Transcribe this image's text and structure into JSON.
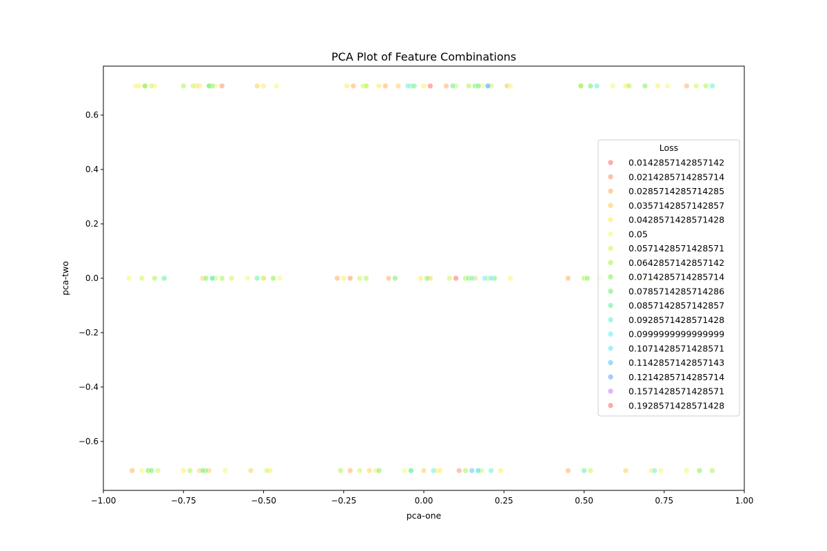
{
  "chart_data": {
    "type": "scatter",
    "title": "PCA Plot of Feature Combinations",
    "xlabel": "pca-one",
    "ylabel": "pca-two",
    "xlim": [
      -1.0,
      1.0
    ],
    "ylim": [
      -0.78,
      0.78
    ],
    "xticks": [
      -1.0,
      -0.75,
      -0.5,
      -0.25,
      0.0,
      0.25,
      0.5,
      0.75,
      1.0
    ],
    "xtick_labels": [
      "−1.00",
      "−0.75",
      "−0.50",
      "−0.25",
      "0.00",
      "0.25",
      "0.50",
      "0.75",
      "1.00"
    ],
    "yticks": [
      -0.6,
      -0.4,
      -0.2,
      0.0,
      0.2,
      0.4,
      0.6
    ],
    "ytick_labels": [
      "−0.6",
      "−0.4",
      "−0.2",
      "0.0",
      "0.2",
      "0.4",
      "0.6"
    ],
    "grid": false,
    "legend": {
      "title": "Loss",
      "placement": "center-right",
      "entries": [
        {
          "label": "0.0142857142857142",
          "color": "#ff8080"
        },
        {
          "label": "0.0214285714285714",
          "color": "#ffa07a"
        },
        {
          "label": "0.0285714285714285",
          "color": "#ffb870"
        },
        {
          "label": "0.0357142857142857",
          "color": "#ffd36b"
        },
        {
          "label": "0.0428571428571428",
          "color": "#ffee66"
        },
        {
          "label": "0.05",
          "color": "#f4fa80"
        },
        {
          "label": "0.0571428571428571",
          "color": "#d4f766"
        },
        {
          "label": "0.0642857142857142",
          "color": "#b2f55e"
        },
        {
          "label": "0.0714285714285714",
          "color": "#8cf261"
        },
        {
          "label": "0.0785714285714286",
          "color": "#78ee80"
        },
        {
          "label": "0.0857142857142857",
          "color": "#70f2a8"
        },
        {
          "label": "0.0928571428571428",
          "color": "#70f5cc"
        },
        {
          "label": "0.0999999999999999",
          "color": "#70f5ec"
        },
        {
          "label": "0.1071428571428571",
          "color": "#78e6ff"
        },
        {
          "label": "0.1142857142857143",
          "color": "#6ccaf5"
        },
        {
          "label": "0.1214285714285714",
          "color": "#7aaef2"
        },
        {
          "label": "0.1571428571428571",
          "color": "#d88af5"
        },
        {
          "label": "0.1928571428571428",
          "color": "#ff7a7a"
        }
      ]
    },
    "series": [
      {
        "name": "0.0142857142857142",
        "x": [],
        "y": []
      },
      {
        "name": "0.0214285714285714",
        "x": [
          -0.63,
          0.11,
          -0.23
        ],
        "y": [
          0.7071,
          -0.7071,
          0.0
        ]
      },
      {
        "name": "0.0285714285714285",
        "x": [
          -0.22,
          -0.12,
          0.07,
          -0.27,
          -0.11,
          0.45,
          0.26,
          -0.91,
          -0.23,
          0.45,
          0.82
        ],
        "y": [
          0.7071,
          0.7071,
          0.7071,
          0.0,
          0.0,
          0.0,
          0.7071,
          -0.7071,
          -0.7071,
          -0.7071,
          0.7071
        ]
      },
      {
        "name": "0.0357142857142857",
        "x": [
          -0.87,
          -0.71,
          -0.69,
          -0.52,
          -0.5,
          -0.08,
          0.02,
          0.16,
          -0.7,
          -0.67,
          -0.54,
          -0.17,
          0.0,
          0.63
        ],
        "y": [
          0.7071,
          0.7071,
          0.0,
          0.7071,
          0.0,
          0.7071,
          0.0,
          0.0,
          -0.7071,
          -0.7071,
          -0.7071,
          -0.7071,
          -0.7071,
          -0.7071
        ]
      },
      {
        "name": "0.0428571428571428",
        "x": [
          -0.89,
          -0.7,
          -0.5,
          -0.24,
          -0.14,
          0.0,
          -0.25,
          -0.01,
          -0.15,
          0.04,
          0.49,
          0.63,
          0.73,
          0.68,
          -0.75,
          -0.48,
          0.05,
          0.24,
          0.71,
          0.88
        ],
        "y": [
          0.7071,
          0.7071,
          0.7071,
          0.7071,
          0.7071,
          0.7071,
          0.0,
          0.0,
          -0.7071,
          -0.7071,
          0.7071,
          0.7071,
          0.7071,
          0.0,
          -0.7071,
          -0.7071,
          -0.7071,
          -0.7071,
          -0.7071,
          0.0
        ]
      },
      {
        "name": "0.05",
        "x": [
          -0.9,
          -0.84,
          -0.65,
          -0.46,
          -0.18,
          0.18,
          0.27,
          -0.92,
          -0.55,
          -0.45,
          0.27,
          0.72,
          -0.88,
          -0.62,
          -0.06,
          0.59,
          0.76,
          0.74,
          -0.86,
          0.82
        ],
        "y": [
          0.7071,
          0.7071,
          0.7071,
          0.7071,
          0.7071,
          0.7071,
          0.0,
          0.0,
          0.0,
          0.0,
          0.7071,
          0.0,
          -0.7071,
          -0.7071,
          -0.7071,
          0.7071,
          0.7071,
          -0.7071,
          -0.7071,
          -0.7071
        ]
      },
      {
        "name": "0.0571428571428571",
        "x": [
          -0.85,
          -0.72,
          -0.6,
          -0.19,
          0.1,
          0.21,
          -0.88,
          -0.65,
          -0.5,
          -0.2,
          0.08,
          0.2,
          0.55,
          -0.83,
          -0.49,
          -0.2,
          0.18,
          0.52,
          0.85
        ],
        "y": [
          0.7071,
          0.7071,
          0.0,
          0.7071,
          0.7071,
          0.7071,
          0.0,
          0.0,
          0.0,
          0.0,
          0.0,
          0.0,
          0.0,
          -0.7071,
          -0.7071,
          -0.7071,
          -0.7071,
          -0.7071,
          0.7071
        ]
      },
      {
        "name": "0.0642857142857142",
        "x": [
          -0.75,
          -0.67,
          -0.18,
          0.14,
          -0.84,
          -0.63,
          -0.18,
          0.13,
          0.5,
          -0.73,
          -0.26,
          0.13,
          0.64,
          0.88,
          0.9
        ],
        "y": [
          0.7071,
          0.7071,
          0.7071,
          0.7071,
          0.0,
          0.0,
          0.0,
          0.0,
          0.0,
          -0.7071,
          -0.7071,
          -0.7071,
          0.7071,
          0.7071,
          -0.7071
        ]
      },
      {
        "name": "0.0714285714285714",
        "x": [
          -0.87,
          -0.66,
          -0.04,
          0.16,
          -0.68,
          -0.47,
          0.01,
          0.14,
          0.51,
          -0.86,
          -0.68,
          -0.14,
          -0.04,
          0.49,
          0.69,
          0.86
        ],
        "y": [
          0.7071,
          0.7071,
          0.7071,
          0.7071,
          0.0,
          0.0,
          0.0,
          0.0,
          0.0,
          -0.7071,
          -0.7071,
          -0.7071,
          -0.7071,
          0.7071,
          0.7071,
          -0.7071
        ]
      },
      {
        "name": "0.0785714285714286",
        "x": [
          -0.67,
          0.17,
          -0.66,
          -0.09,
          0.22,
          -0.85,
          -0.69,
          0.17,
          0.52
        ],
        "y": [
          0.7071,
          0.7071,
          0.0,
          0.0,
          0.0,
          -0.7071,
          -0.7071,
          -0.7071,
          0.7071
        ]
      },
      {
        "name": "0.0857142857142857",
        "x": [
          -0.03,
          0.09,
          -0.81,
          -0.52,
          0.5
        ],
        "y": [
          0.7071,
          0.7071,
          0.0,
          0.0,
          -0.7071
        ]
      },
      {
        "name": "0.0928571428571428",
        "x": [
          0.2,
          -0.66,
          0.15,
          -0.04,
          0.21,
          0.54,
          0.72,
          0.9
        ],
        "y": [
          0.7071,
          0.0,
          0.0,
          -0.7071,
          -0.7071,
          0.7071,
          -0.7071,
          0.7071
        ]
      },
      {
        "name": "0.0999999999999999",
        "x": [
          -0.05,
          0.19,
          0.03
        ],
        "y": [
          0.7071,
          0.0,
          -0.7071
        ]
      },
      {
        "name": "0.1071428571428571",
        "x": [
          0.21,
          0.17
        ],
        "y": [
          0.0,
          -0.7071
        ]
      },
      {
        "name": "0.1142857142857143",
        "x": [
          0.15
        ],
        "y": [
          -0.7071
        ]
      },
      {
        "name": "0.1214285714285714",
        "x": [
          0.2
        ],
        "y": [
          0.7071
        ]
      },
      {
        "name": "0.1571428571428571",
        "x": [],
        "y": []
      },
      {
        "name": "0.1928571428571428",
        "x": [
          0.02,
          0.1
        ],
        "y": [
          0.7071,
          0.0
        ]
      }
    ]
  }
}
